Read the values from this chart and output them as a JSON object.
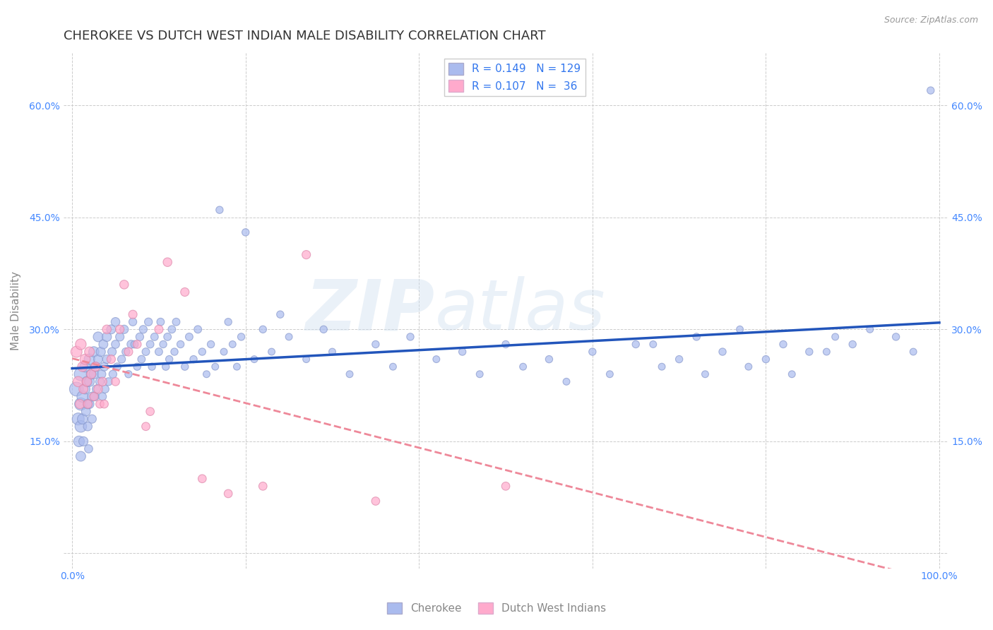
{
  "title": "CHEROKEE VS DUTCH WEST INDIAN MALE DISABILITY CORRELATION CHART",
  "source": "Source: ZipAtlas.com",
  "ylabel": "Male Disability",
  "xlim": [
    -0.01,
    1.01
  ],
  "ylim": [
    -0.02,
    0.67
  ],
  "xticks": [
    0.0,
    0.2,
    0.4,
    0.6,
    0.8,
    1.0
  ],
  "yticks": [
    0.0,
    0.15,
    0.3,
    0.45,
    0.6
  ],
  "background_color": "#ffffff",
  "grid_color": "#cccccc",
  "title_color": "#333333",
  "axis_label_color": "#888888",
  "tick_label_color": "#4488ff",
  "watermark_zip": "ZIP",
  "watermark_atlas": "atlas",
  "legend_R_color": "#3377ee",
  "cherokee_color": "#aabbee",
  "dutch_color": "#ffaacc",
  "cherokee_line_color": "#2255bb",
  "dutch_line_color": "#ee8899",
  "R_cherokee": 0.149,
  "N_cherokee": 129,
  "R_dutch": 0.107,
  "N_dutch": 36,
  "cherokee_x": [
    0.005,
    0.007,
    0.008,
    0.01,
    0.01,
    0.01,
    0.01,
    0.012,
    0.012,
    0.013,
    0.015,
    0.015,
    0.016,
    0.017,
    0.018,
    0.018,
    0.019,
    0.02,
    0.02,
    0.02,
    0.022,
    0.023,
    0.023,
    0.025,
    0.025,
    0.026,
    0.027,
    0.028,
    0.03,
    0.03,
    0.032,
    0.033,
    0.034,
    0.035,
    0.036,
    0.037,
    0.038,
    0.04,
    0.04,
    0.042,
    0.045,
    0.046,
    0.047,
    0.05,
    0.05,
    0.052,
    0.055,
    0.057,
    0.06,
    0.062,
    0.065,
    0.068,
    0.07,
    0.072,
    0.075,
    0.078,
    0.08,
    0.082,
    0.085,
    0.088,
    0.09,
    0.092,
    0.095,
    0.1,
    0.102,
    0.105,
    0.108,
    0.11,
    0.112,
    0.115,
    0.118,
    0.12,
    0.125,
    0.13,
    0.135,
    0.14,
    0.145,
    0.15,
    0.155,
    0.16,
    0.165,
    0.17,
    0.175,
    0.18,
    0.185,
    0.19,
    0.195,
    0.2,
    0.21,
    0.22,
    0.23,
    0.24,
    0.25,
    0.27,
    0.29,
    0.3,
    0.32,
    0.35,
    0.37,
    0.39,
    0.42,
    0.45,
    0.47,
    0.5,
    0.52,
    0.55,
    0.57,
    0.6,
    0.62,
    0.65,
    0.68,
    0.7,
    0.73,
    0.75,
    0.78,
    0.8,
    0.83,
    0.85,
    0.88,
    0.9,
    0.92,
    0.95,
    0.97,
    0.99,
    0.67,
    0.72,
    0.77,
    0.82,
    0.87
  ],
  "cherokee_y": [
    0.22,
    0.18,
    0.15,
    0.24,
    0.2,
    0.17,
    0.13,
    0.21,
    0.18,
    0.15,
    0.25,
    0.22,
    0.19,
    0.23,
    0.2,
    0.17,
    0.14,
    0.26,
    0.23,
    0.2,
    0.24,
    0.21,
    0.18,
    0.27,
    0.24,
    0.21,
    0.25,
    0.22,
    0.29,
    0.26,
    0.23,
    0.27,
    0.24,
    0.21,
    0.28,
    0.25,
    0.22,
    0.29,
    0.26,
    0.23,
    0.3,
    0.27,
    0.24,
    0.31,
    0.28,
    0.25,
    0.29,
    0.26,
    0.3,
    0.27,
    0.24,
    0.28,
    0.31,
    0.28,
    0.25,
    0.29,
    0.26,
    0.3,
    0.27,
    0.31,
    0.28,
    0.25,
    0.29,
    0.27,
    0.31,
    0.28,
    0.25,
    0.29,
    0.26,
    0.3,
    0.27,
    0.31,
    0.28,
    0.25,
    0.29,
    0.26,
    0.3,
    0.27,
    0.24,
    0.28,
    0.25,
    0.46,
    0.27,
    0.31,
    0.28,
    0.25,
    0.29,
    0.43,
    0.26,
    0.3,
    0.27,
    0.32,
    0.29,
    0.26,
    0.3,
    0.27,
    0.24,
    0.28,
    0.25,
    0.29,
    0.26,
    0.27,
    0.24,
    0.28,
    0.25,
    0.26,
    0.23,
    0.27,
    0.24,
    0.28,
    0.25,
    0.26,
    0.24,
    0.27,
    0.25,
    0.26,
    0.24,
    0.27,
    0.29,
    0.28,
    0.3,
    0.29,
    0.27,
    0.62,
    0.28,
    0.29,
    0.3,
    0.28,
    0.27
  ],
  "cherokee_sizes": [
    200,
    150,
    120,
    180,
    160,
    140,
    100,
    130,
    110,
    90,
    120,
    100,
    85,
    110,
    95,
    80,
    70,
    120,
    100,
    85,
    100,
    85,
    75,
    110,
    95,
    80,
    90,
    75,
    100,
    85,
    75,
    90,
    75,
    65,
    85,
    75,
    65,
    90,
    75,
    65,
    85,
    75,
    65,
    80,
    70,
    60,
    75,
    65,
    75,
    65,
    55,
    70,
    65,
    60,
    55,
    65,
    60,
    65,
    60,
    65,
    60,
    55,
    60,
    60,
    60,
    55,
    55,
    60,
    55,
    60,
    55,
    60,
    55,
    55,
    60,
    55,
    60,
    55,
    50,
    55,
    50,
    55,
    50,
    55,
    50,
    50,
    55,
    55,
    50,
    55,
    50,
    55,
    50,
    50,
    55,
    50,
    50,
    55,
    50,
    55,
    50,
    55,
    50,
    55,
    50,
    55,
    50,
    55,
    50,
    55,
    50,
    55,
    50,
    55,
    50,
    55,
    50,
    55,
    50,
    55,
    50,
    55,
    50,
    55,
    50,
    55,
    50,
    55,
    50
  ],
  "dutch_x": [
    0.005,
    0.007,
    0.009,
    0.01,
    0.012,
    0.013,
    0.015,
    0.017,
    0.018,
    0.02,
    0.022,
    0.025,
    0.027,
    0.03,
    0.032,
    0.035,
    0.037,
    0.04,
    0.045,
    0.05,
    0.055,
    0.06,
    0.065,
    0.07,
    0.075,
    0.085,
    0.09,
    0.1,
    0.11,
    0.13,
    0.15,
    0.18,
    0.22,
    0.27,
    0.35,
    0.5
  ],
  "dutch_y": [
    0.27,
    0.23,
    0.2,
    0.28,
    0.25,
    0.22,
    0.26,
    0.23,
    0.2,
    0.27,
    0.24,
    0.21,
    0.25,
    0.22,
    0.2,
    0.23,
    0.2,
    0.3,
    0.26,
    0.23,
    0.3,
    0.36,
    0.27,
    0.32,
    0.28,
    0.17,
    0.19,
    0.3,
    0.39,
    0.35,
    0.1,
    0.08,
    0.09,
    0.4,
    0.07,
    0.09
  ],
  "dutch_sizes": [
    130,
    110,
    90,
    120,
    100,
    85,
    110,
    90,
    80,
    100,
    85,
    75,
    90,
    80,
    70,
    80,
    70,
    80,
    75,
    70,
    75,
    80,
    75,
    75,
    70,
    70,
    70,
    75,
    80,
    75,
    70,
    70,
    70,
    75,
    70,
    70
  ]
}
